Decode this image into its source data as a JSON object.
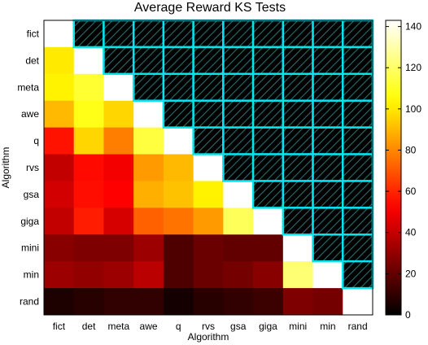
{
  "chart_data": {
    "type": "heatmap",
    "title": "Average Reward KS Tests",
    "xlabel": "Algorithm",
    "ylabel": "Algorithm",
    "categories": [
      "fict",
      "det",
      "meta",
      "awe",
      "q",
      "rvs",
      "gsa",
      "giga",
      "mini",
      "min",
      "rand"
    ],
    "colorbar": {
      "min": 0,
      "max": 143,
      "ticks": [
        0,
        20,
        40,
        60,
        80,
        100,
        120,
        140
      ],
      "colormap": "hot"
    },
    "diagonal_color": "#ffffff",
    "upper_triangle": {
      "fill": "#000000",
      "hatched": true,
      "border_color": "#00e5ee"
    },
    "values": [
      [
        null,
        null,
        null,
        null,
        null,
        null,
        null,
        null,
        null,
        null,
        null
      ],
      [
        100,
        null,
        null,
        null,
        null,
        null,
        null,
        null,
        null,
        null,
        null
      ],
      [
        102,
        112,
        null,
        null,
        null,
        null,
        null,
        null,
        null,
        null,
        null
      ],
      [
        90,
        108,
        96,
        null,
        null,
        null,
        null,
        null,
        null,
        null,
        null
      ],
      [
        56,
        96,
        78,
        114,
        null,
        null,
        null,
        null,
        null,
        null,
        null
      ],
      [
        40,
        54,
        50,
        84,
        90,
        null,
        null,
        null,
        null,
        null,
        null
      ],
      [
        43,
        55,
        52,
        88,
        92,
        102,
        null,
        null,
        null,
        null,
        null
      ],
      [
        40,
        58,
        44,
        72,
        76,
        84,
        118,
        null,
        null,
        null,
        null
      ],
      [
        28,
        26,
        26,
        32,
        16,
        22,
        20,
        20,
        null,
        null,
        null
      ],
      [
        32,
        30,
        32,
        38,
        16,
        22,
        24,
        28,
        122,
        null,
        null
      ],
      [
        6,
        8,
        10,
        10,
        4,
        8,
        10,
        12,
        26,
        24,
        null
      ]
    ]
  }
}
